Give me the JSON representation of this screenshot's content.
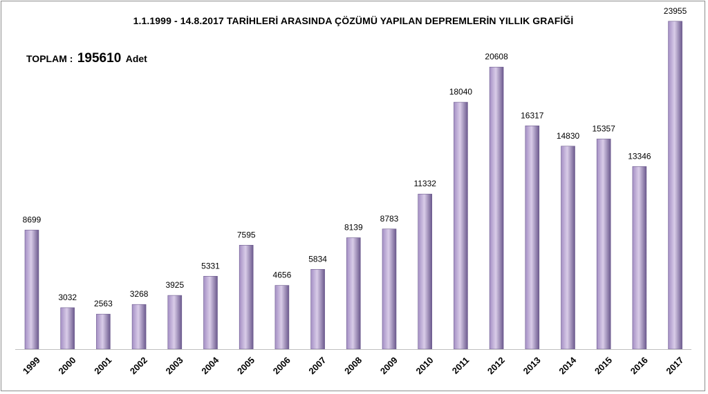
{
  "chart_data": {
    "type": "bar",
    "title": "1.1.1999 - 14.8.2017 TARİHLERİ ARASINDA ÇÖZÜMÜ YAPILAN DEPREMLERİN YILLIK GRAFİĞİ",
    "total": {
      "label": "TOPLAM :",
      "value": "195610",
      "unit": "Adet"
    },
    "categories": [
      "1999",
      "2000",
      "2001",
      "2002",
      "2003",
      "2004",
      "2005",
      "2006",
      "2007",
      "2008",
      "2009",
      "2010",
      "2011",
      "2012",
      "2013",
      "2014",
      "2015",
      "2016",
      "2017"
    ],
    "values": [
      8699,
      3032,
      2563,
      3268,
      3925,
      5331,
      7595,
      4656,
      5834,
      8139,
      8783,
      11332,
      18040,
      20608,
      16317,
      14830,
      15357,
      13346,
      23955
    ],
    "ylim": [
      0,
      24500
    ],
    "grid": false,
    "legend": "none",
    "colors": {
      "bar_light": "#d9cce8",
      "bar_mid": "#a48fc4",
      "bar_dark": "#6c5a8e",
      "axis": "#bfbfbf"
    }
  }
}
